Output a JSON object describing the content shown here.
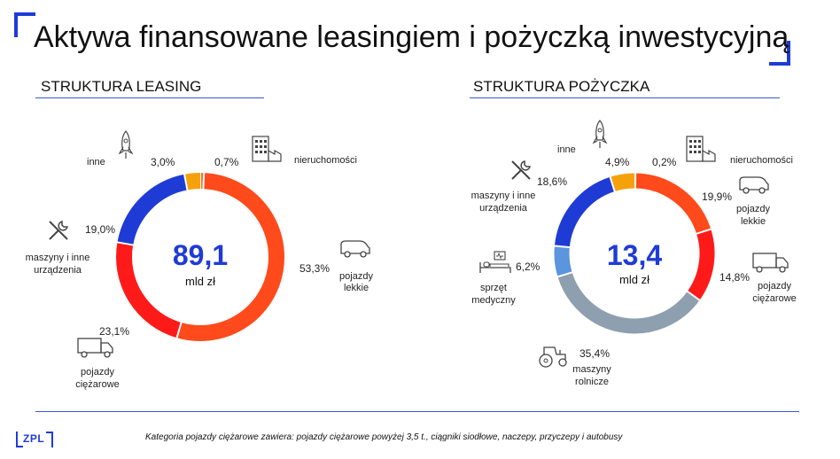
{
  "title": "Aktywa finansowane leasingiem i pożyczką inwestycyjną",
  "footnote": "Kategoria pojazdy ciężarowe zawiera: pojazdy ciężarowe powyżej 3,5 t., ciągniki siodłowe, naczepy, przyczepy i autobusy",
  "logo_text": "ZPL",
  "colors": {
    "accent": "#1f3bd6",
    "lekkie": "#ff4a1c",
    "ciezarowe": "#ff1a1a",
    "maszyny": "#1f3bd6",
    "inne": "#f5a10c",
    "nieruchomosci": "#ff6a2a",
    "sprzet": "#5b95dd",
    "rolnicze": "#8e9faf"
  },
  "chart_data": [
    {
      "type": "pie",
      "title": "STRUKTURA LEASING",
      "center_value": "89,1",
      "center_unit": "mld zł",
      "slices": [
        {
          "key": "nieruchomosci",
          "label": "nieruchomości",
          "value": 0.7,
          "pct_label": "0,7%",
          "color": "#ff6a2a",
          "icon": "building-icon"
        },
        {
          "key": "lekkie",
          "label": "pojazdy lekkie",
          "value": 53.3,
          "pct_label": "53,3%",
          "color": "#ff4a1c",
          "icon": "van-icon"
        },
        {
          "key": "ciezarowe",
          "label": "pojazdy ciężarowe",
          "value": 23.1,
          "pct_label": "23,1%",
          "color": "#ff1a1a",
          "icon": "truck-icon"
        },
        {
          "key": "maszyny",
          "label": "maszyny i inne urządzenia",
          "value": 19.0,
          "pct_label": "19,0%",
          "color": "#1f3bd6",
          "icon": "tools-icon"
        },
        {
          "key": "inne",
          "label": "inne",
          "value": 3.0,
          "pct_label": "3,0%",
          "color": "#f5a10c",
          "icon": "rocket-icon"
        }
      ]
    },
    {
      "type": "pie",
      "title": "STRUKTURA POŻYCZKA",
      "center_value": "13,4",
      "center_unit": "mld zł",
      "slices": [
        {
          "key": "nieruchomosci",
          "label": "nieruchomości",
          "value": 0.2,
          "pct_label": "0,2%",
          "color": "#ff6a2a",
          "icon": "building-icon"
        },
        {
          "key": "lekkie",
          "label": "pojazdy lekkie",
          "value": 19.9,
          "pct_label": "19,9%",
          "color": "#ff4a1c",
          "icon": "van-icon"
        },
        {
          "key": "ciezarowe",
          "label": "pojazdy ciężarowe",
          "value": 14.8,
          "pct_label": "14,8%",
          "color": "#ff1a1a",
          "icon": "truck-icon"
        },
        {
          "key": "rolnicze",
          "label": "maszyny rolnicze",
          "value": 35.4,
          "pct_label": "35,4%",
          "color": "#8e9faf",
          "icon": "tractor-icon"
        },
        {
          "key": "sprzet",
          "label": "sprzęt medyczny",
          "value": 6.2,
          "pct_label": "6,2%",
          "color": "#5b95dd",
          "icon": "medical-bed-icon"
        },
        {
          "key": "maszyny",
          "label": "maszyny i inne urządzenia",
          "value": 18.6,
          "pct_label": "18,6%",
          "color": "#1f3bd6",
          "icon": "tools-icon"
        },
        {
          "key": "inne",
          "label": "inne",
          "value": 4.9,
          "pct_label": "4,9%",
          "color": "#f5a10c",
          "icon": "rocket-icon"
        }
      ]
    }
  ],
  "labels": {
    "leasing": {
      "inne": "inne",
      "maszyny_1": "maszyny i inne",
      "maszyny_2": "urządzenia",
      "nieruchomosci": "nieruchomości",
      "lekkie_1": "pojazdy",
      "lekkie_2": "lekkie",
      "ciezarowe_1": "pojazdy",
      "ciezarowe_2": "ciężarowe"
    },
    "pozyczka": {
      "inne": "inne",
      "maszyny_1": "maszyny i inne",
      "maszyny_2": "urządzenia",
      "nieruchomosci": "nieruchomości",
      "lekkie_1": "pojazdy",
      "lekkie_2": "lekkie",
      "ciezarowe_1": "pojazdy",
      "ciezarowe_2": "ciężarowe",
      "rolnicze_1": "maszyny",
      "rolnicze_2": "rolnicze",
      "sprzet_1": "sprzęt",
      "sprzet_2": "medyczny"
    }
  }
}
